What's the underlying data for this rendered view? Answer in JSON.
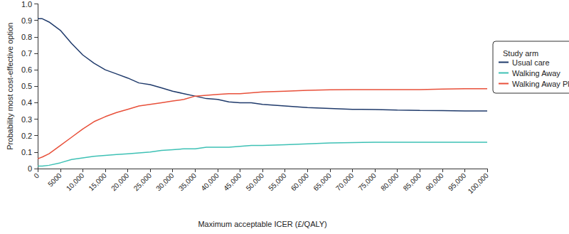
{
  "chart_data": {
    "type": "line",
    "x_label": "Maximum acceptable ICER (£/QALY)",
    "y_label": "Probability most cost-effective option",
    "legend_title": "Study arm",
    "legend": "right",
    "grid": false,
    "x": [
      0,
      1000,
      2500,
      5000,
      7500,
      10000,
      12500,
      15000,
      17500,
      20000,
      22500,
      25000,
      27500,
      30000,
      32500,
      35000,
      37500,
      40000,
      42500,
      45000,
      47500,
      50000,
      55000,
      60000,
      65000,
      70000,
      75000,
      80000,
      85000,
      90000,
      95000,
      100000
    ],
    "series": [
      {
        "name": "Usual care",
        "color": "#1f3a6b",
        "values": [
          0.91,
          0.91,
          0.89,
          0.84,
          0.76,
          0.69,
          0.64,
          0.6,
          0.575,
          0.55,
          0.52,
          0.51,
          0.49,
          0.47,
          0.455,
          0.44,
          0.425,
          0.42,
          0.405,
          0.4,
          0.4,
          0.39,
          0.38,
          0.37,
          0.365,
          0.36,
          0.358,
          0.355,
          0.353,
          0.352,
          0.35,
          0.35
        ]
      },
      {
        "name": "Walking Away",
        "color": "#3ec1b5",
        "values": [
          0.015,
          0.015,
          0.02,
          0.035,
          0.055,
          0.065,
          0.075,
          0.08,
          0.085,
          0.09,
          0.095,
          0.1,
          0.11,
          0.115,
          0.12,
          0.12,
          0.13,
          0.13,
          0.13,
          0.135,
          0.14,
          0.14,
          0.145,
          0.15,
          0.155,
          0.158,
          0.16,
          0.16,
          0.16,
          0.16,
          0.16,
          0.16
        ]
      },
      {
        "name": "Walking Away Plus",
        "color": "#e8503a",
        "values": [
          0.06,
          0.07,
          0.09,
          0.14,
          0.19,
          0.24,
          0.285,
          0.315,
          0.34,
          0.36,
          0.38,
          0.39,
          0.4,
          0.41,
          0.42,
          0.44,
          0.445,
          0.45,
          0.455,
          0.455,
          0.46,
          0.465,
          0.47,
          0.475,
          0.478,
          0.48,
          0.48,
          0.48,
          0.48,
          0.483,
          0.485,
          0.485
        ]
      }
    ],
    "xlim": [
      0,
      100000
    ],
    "xticks": [
      0,
      5000,
      {
        "value": 10000,
        "label": "10,000"
      },
      {
        "value": 15000,
        "label": "15,000"
      },
      {
        "value": 20000,
        "label": "20,000"
      },
      {
        "value": 25000,
        "label": "25,000"
      },
      {
        "value": 30000,
        "label": "30,000"
      },
      {
        "value": 35000,
        "label": "35,000"
      },
      {
        "value": 40000,
        "label": "40,000"
      },
      {
        "value": 45000,
        "label": "45,000"
      },
      {
        "value": 50000,
        "label": "50,000"
      },
      {
        "value": 55000,
        "label": "55,000"
      },
      {
        "value": 60000,
        "label": "60,000"
      },
      {
        "value": 65000,
        "label": "65,000"
      },
      {
        "value": 70000,
        "label": "70,000"
      },
      {
        "value": 75000,
        "label": "75,000"
      },
      {
        "value": 80000,
        "label": "80,000"
      },
      {
        "value": 85000,
        "label": "85,000"
      },
      {
        "value": 90000,
        "label": "90,000"
      },
      {
        "value": 95000,
        "label": "95,000"
      },
      {
        "value": 100000,
        "label": "100,000"
      }
    ],
    "ylim": [
      0,
      1
    ],
    "yticks": [
      0,
      0.1,
      0.2,
      0.3,
      0.4,
      0.5,
      0.6,
      0.7,
      0.8,
      0.9,
      {
        "value": 1,
        "label": "1.0"
      }
    ]
  }
}
